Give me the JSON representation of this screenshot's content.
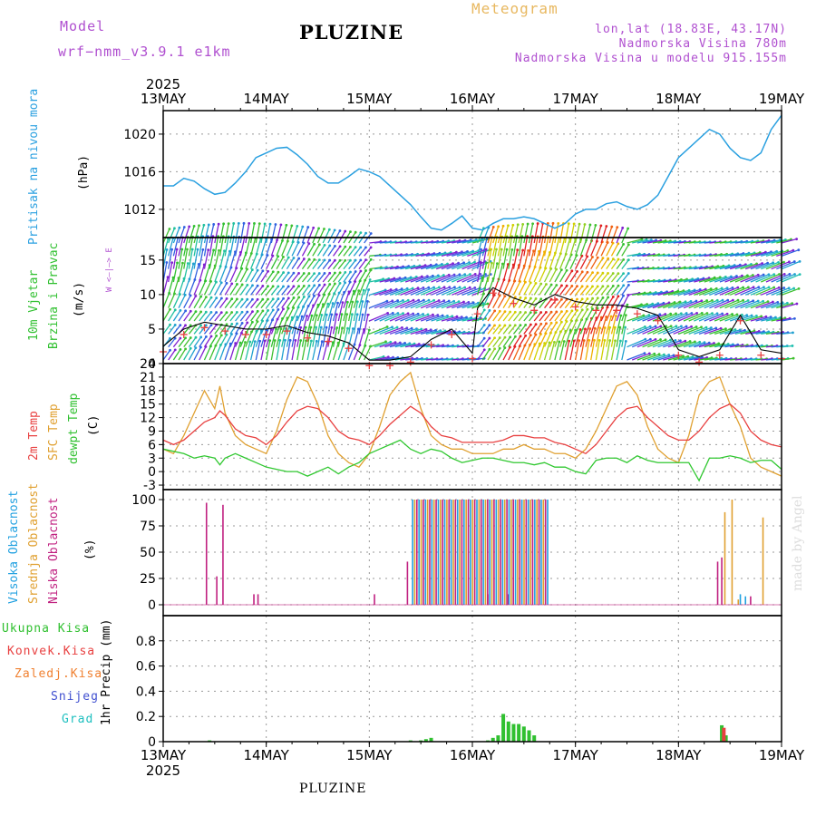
{
  "header": {
    "model_label": "Model",
    "model_name": "wrf−nmm_v3.9.1  e1km",
    "title": "PLUZINE",
    "product": "Meteogram",
    "coords": "lon,lat (18.83E, 43.17N)",
    "elevation": "Nadmorska Visina 780m",
    "model_elevation": "Nadmorska Visina u modelu 915.155m",
    "footer_title": "PLUZINE",
    "watermark": "made by Angel",
    "year_top": "2025",
    "year_bottom": "2025"
  },
  "colors": {
    "pressure": "#2aa0e0",
    "temp2m": "#e84040",
    "sfctemp": "#e0a030",
    "dewpt": "#30c830",
    "high_cloud": "#20a0e0",
    "mid_cloud": "#e0a030",
    "low_cloud": "#c02080",
    "total_precip": "#30c030",
    "conv_precip": "#e84040",
    "purple": "#b050d0",
    "grid": "#999999"
  },
  "panel_labels": {
    "pressure": {
      "title": "Pritisak na nivou mora",
      "unit": "(hPa)"
    },
    "wind": {
      "title1": "10m Vjetar",
      "title2": "Brzina i Pravac",
      "unit": "(m/s)",
      "compass": "W <—|—> E"
    },
    "temp": {
      "t1": "2m Temp",
      "t2": "SFC Temp",
      "t3": "dewpt Temp",
      "unit": "(C)"
    },
    "cloud": {
      "c1": "Visoka Oblacnost",
      "c2": "Srednja Oblacnost",
      "c3": "Niska Oblacnost",
      "unit": "(%)"
    },
    "precip": {
      "p1": "Ukupna Kisa",
      "p2": "Konvek.Kisa",
      "p3": "Zaledj.Kisa",
      "p4": "Snijeg",
      "p5": "Grad",
      "unit": "1hr Precip (mm)"
    }
  },
  "chart_data": [
    {
      "type": "line",
      "x_ticks": [
        "13MAY",
        "14MAY",
        "15MAY",
        "16MAY",
        "17MAY",
        "18MAY",
        "19MAY"
      ],
      "ylim": [
        1009,
        1022.5
      ],
      "y_ticks": [
        1012,
        1016,
        1020
      ],
      "series": [
        {
          "key": "pressure",
          "x": [
            0,
            0.1,
            0.2,
            0.3,
            0.4,
            0.5,
            0.6,
            0.7,
            0.8,
            0.9,
            1.0,
            1.1,
            1.2,
            1.3,
            1.4,
            1.5,
            1.6,
            1.7,
            1.8,
            1.9,
            2.0,
            2.1,
            2.2,
            2.3,
            2.4,
            2.5,
            2.6,
            2.7,
            2.8,
            2.9,
            3.0,
            3.1,
            3.2,
            3.3,
            3.4,
            3.5,
            3.6,
            3.7,
            3.8,
            3.9,
            4.0,
            4.1,
            4.2,
            4.3,
            4.4,
            4.5,
            4.6,
            4.7,
            4.8,
            4.9,
            5.0,
            5.1,
            5.2,
            5.3,
            5.4,
            5.5,
            5.6,
            5.7,
            5.8,
            5.9,
            6.0
          ],
          "values": [
            1014.5,
            1014.5,
            1015.3,
            1015.0,
            1014.2,
            1013.6,
            1013.8,
            1014.8,
            1016.0,
            1017.5,
            1018.0,
            1018.5,
            1018.6,
            1017.8,
            1016.8,
            1015.5,
            1014.8,
            1014.8,
            1015.5,
            1016.3,
            1016.0,
            1015.5,
            1014.5,
            1013.5,
            1012.5,
            1011.2,
            1010.0,
            1009.8,
            1010.5,
            1011.3,
            1010.0,
            1009.8,
            1010.5,
            1011.0,
            1011.0,
            1011.2,
            1011.0,
            1010.5,
            1010.0,
            1010.5,
            1011.5,
            1012.0,
            1012.0,
            1012.6,
            1012.8,
            1012.3,
            1012.0,
            1012.5,
            1013.5,
            1015.5,
            1017.5,
            1018.5,
            1019.5,
            1020.5,
            1020.0,
            1018.5,
            1017.5,
            1017.2,
            1018.0,
            1020.5,
            1022.0
          ]
        }
      ]
    },
    {
      "type": "line",
      "x_ticks": [
        "13MAY",
        "14MAY",
        "15MAY",
        "16MAY",
        "17MAY",
        "18MAY",
        "19MAY"
      ],
      "ylim": [
        0,
        18
      ],
      "y_ticks": [
        0,
        5,
        10,
        15
      ],
      "series": [
        {
          "key": "wind_speed",
          "x": [
            0,
            0.2,
            0.4,
            0.6,
            0.8,
            1.0,
            1.2,
            1.4,
            1.6,
            1.8,
            2.0,
            2.2,
            2.4,
            2.6,
            2.8,
            3.0,
            3.05,
            3.2,
            3.4,
            3.6,
            3.8,
            4.0,
            4.2,
            4.4,
            4.6,
            4.8,
            5.0,
            5.2,
            5.4,
            5.6,
            5.8,
            6.0
          ],
          "values": [
            2.5,
            5.0,
            6.0,
            5.5,
            5.0,
            5.0,
            5.5,
            4.5,
            4.0,
            3.0,
            0.5,
            0.5,
            1.0,
            3.5,
            5.0,
            1.5,
            8.0,
            11.0,
            9.5,
            8.5,
            10.0,
            9.0,
            8.5,
            8.5,
            8.0,
            7.0,
            2.0,
            1.0,
            2.0,
            7.0,
            2.0,
            1.5
          ]
        }
      ]
    },
    {
      "type": "line",
      "x_ticks": [
        "13MAY",
        "14MAY",
        "15MAY",
        "16MAY",
        "17MAY",
        "18MAY",
        "19MAY"
      ],
      "ylim": [
        -4,
        24
      ],
      "y_ticks": [
        -3,
        0,
        3,
        6,
        9,
        12,
        15,
        18,
        21,
        24
      ],
      "series": [
        {
          "key": "temp2m",
          "x": [
            0,
            0.1,
            0.2,
            0.3,
            0.4,
            0.5,
            0.55,
            0.6,
            0.7,
            0.8,
            0.9,
            1.0,
            1.1,
            1.2,
            1.3,
            1.4,
            1.5,
            1.6,
            1.7,
            1.8,
            1.9,
            2.0,
            2.1,
            2.2,
            2.3,
            2.4,
            2.5,
            2.6,
            2.7,
            2.8,
            2.9,
            3.0,
            3.1,
            3.2,
            3.3,
            3.4,
            3.5,
            3.6,
            3.7,
            3.8,
            3.9,
            4.0,
            4.1,
            4.2,
            4.3,
            4.4,
            4.5,
            4.6,
            4.7,
            4.8,
            4.9,
            5.0,
            5.1,
            5.2,
            5.3,
            5.4,
            5.5,
            5.6,
            5.7,
            5.8,
            5.9,
            6.0
          ],
          "values": [
            7,
            6,
            7,
            9,
            11,
            12,
            13.5,
            12.5,
            9.5,
            8,
            7.5,
            6,
            8,
            11,
            13.5,
            14.5,
            14,
            12,
            9,
            7.5,
            7,
            6,
            8,
            10.5,
            12.5,
            14.5,
            13,
            10,
            8,
            7.5,
            6.5,
            6.5,
            6.5,
            6.5,
            7,
            8,
            8,
            7.5,
            7.5,
            6.5,
            6,
            5,
            4,
            6,
            9,
            12,
            14,
            14.5,
            12,
            10,
            8,
            7,
            7,
            9,
            12,
            14,
            15,
            13,
            9,
            7,
            6,
            5.5
          ]
        },
        {
          "key": "sfctemp",
          "x": [
            0,
            0.1,
            0.2,
            0.3,
            0.4,
            0.5,
            0.55,
            0.6,
            0.7,
            0.8,
            0.9,
            1.0,
            1.1,
            1.2,
            1.3,
            1.4,
            1.5,
            1.6,
            1.7,
            1.8,
            1.9,
            2.0,
            2.1,
            2.2,
            2.3,
            2.4,
            2.5,
            2.6,
            2.7,
            2.8,
            2.9,
            3.0,
            3.1,
            3.2,
            3.3,
            3.4,
            3.5,
            3.6,
            3.7,
            3.8,
            3.9,
            4.0,
            4.1,
            4.2,
            4.3,
            4.4,
            4.5,
            4.6,
            4.7,
            4.8,
            4.9,
            5.0,
            5.1,
            5.2,
            5.3,
            5.4,
            5.5,
            5.6,
            5.7,
            5.8,
            5.9,
            6.0
          ],
          "values": [
            5,
            4,
            8,
            13,
            18,
            14,
            19,
            13,
            8,
            6,
            5,
            4,
            9,
            16,
            21,
            20,
            15,
            8,
            4,
            2,
            1,
            4,
            10,
            17,
            20,
            22,
            14,
            8,
            6,
            5,
            5,
            4,
            4,
            4,
            5,
            5,
            6,
            5,
            5,
            4,
            4,
            3,
            5,
            9,
            14,
            19,
            20,
            17,
            10,
            5,
            3,
            2,
            8,
            17,
            20,
            21,
            15,
            10,
            3,
            1,
            0,
            -1
          ]
        },
        {
          "key": "dewpt",
          "x": [
            0,
            0.1,
            0.2,
            0.3,
            0.4,
            0.5,
            0.55,
            0.6,
            0.7,
            0.8,
            0.9,
            1.0,
            1.1,
            1.2,
            1.3,
            1.4,
            1.5,
            1.6,
            1.7,
            1.8,
            1.9,
            2.0,
            2.1,
            2.2,
            2.3,
            2.4,
            2.5,
            2.6,
            2.7,
            2.8,
            2.9,
            3.0,
            3.1,
            3.2,
            3.3,
            3.4,
            3.5,
            3.6,
            3.7,
            3.8,
            3.9,
            4.0,
            4.1,
            4.2,
            4.3,
            4.4,
            4.5,
            4.6,
            4.7,
            4.8,
            4.9,
            5.0,
            5.1,
            5.2,
            5.3,
            5.4,
            5.5,
            5.6,
            5.7,
            5.8,
            5.9,
            6.0
          ],
          "values": [
            5,
            4.5,
            4,
            3,
            3.5,
            3,
            1.5,
            3,
            4,
            3,
            2,
            1,
            0.5,
            0,
            0,
            -1,
            0,
            1,
            -0.5,
            1,
            2,
            4,
            5,
            6,
            7,
            5,
            4,
            5,
            4.5,
            3,
            2,
            2.5,
            3,
            3,
            2.5,
            2,
            2,
            1.5,
            2,
            1,
            1,
            0,
            -0.5,
            2.5,
            3,
            3,
            2,
            3.5,
            2.5,
            2,
            2,
            2,
            2,
            -2,
            3,
            3,
            3.5,
            3,
            2,
            2.5,
            2.5,
            0.5
          ]
        }
      ]
    },
    {
      "type": "bar",
      "x_ticks": [
        "13MAY",
        "14MAY",
        "15MAY",
        "16MAY",
        "17MAY",
        "18MAY",
        "19MAY"
      ],
      "ylim": [
        0,
        100
      ],
      "y_ticks": [
        0,
        25,
        50,
        75,
        100
      ],
      "series": [
        {
          "key": "low_cloud",
          "x": [
            0.42,
            0.52,
            0.58,
            0.88,
            0.92,
            2.05,
            2.37,
            3.15,
            3.35,
            5.38,
            5.42,
            5.7
          ],
          "values": [
            97,
            27,
            95,
            10,
            10,
            10,
            41,
            10,
            10,
            41,
            45,
            8
          ]
        },
        {
          "key": "mid_cloud",
          "x": [
            5.45,
            5.52,
            5.58,
            5.82
          ],
          "values": [
            88,
            100,
            5,
            83
          ]
        },
        {
          "key": "high_cloud",
          "x": [
            5.6,
            5.65
          ],
          "values": [
            10,
            8
          ]
        }
      ],
      "overcast_block": {
        "start": 2.42,
        "end": 3.75,
        "value": 100
      }
    },
    {
      "type": "bar",
      "x_ticks": [
        "13MAY",
        "14MAY",
        "15MAY",
        "16MAY",
        "17MAY",
        "18MAY",
        "19MAY"
      ],
      "ylim": [
        0,
        1.0
      ],
      "y_ticks": [
        0,
        0.2,
        0.4,
        0.6,
        0.8
      ],
      "series": [
        {
          "key": "total_precip",
          "x": [
            0.45,
            2.4,
            2.5,
            2.55,
            2.6,
            3.15,
            3.2,
            3.25,
            3.3,
            3.35,
            3.4,
            3.45,
            3.5,
            3.55,
            3.6,
            5.42,
            5.46
          ],
          "values": [
            0.01,
            0.01,
            0.01,
            0.02,
            0.03,
            0.01,
            0.03,
            0.05,
            0.22,
            0.16,
            0.14,
            0.14,
            0.12,
            0.09,
            0.05,
            0.13,
            0.05
          ]
        },
        {
          "key": "conv_precip",
          "x": [
            5.44
          ],
          "values": [
            0.11
          ]
        }
      ]
    }
  ]
}
